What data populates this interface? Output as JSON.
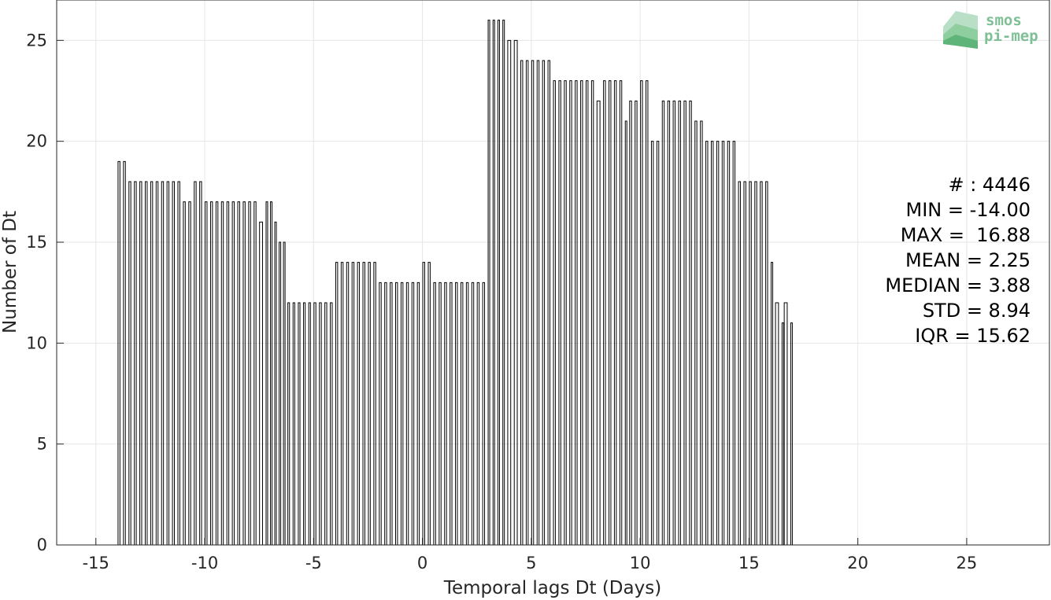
{
  "chart_data": {
    "type": "bar",
    "xlabel": "Temporal lags Dt (Days)",
    "ylabel": "Number of Dt",
    "xlim": [
      -16.8,
      28.8
    ],
    "ylim": [
      0,
      27
    ],
    "xticks": [
      -15,
      -10,
      -5,
      0,
      5,
      10,
      15,
      20,
      25
    ],
    "yticks": [
      0,
      5,
      10,
      15,
      20,
      25
    ],
    "grid": true,
    "bar_color": "#000000",
    "bins": [
      {
        "x0": -14.0,
        "x1": -13.5,
        "value": 19
      },
      {
        "x0": -13.5,
        "x1": -12.5,
        "value": 18
      },
      {
        "x0": -12.5,
        "x1": -11.5,
        "value": 18
      },
      {
        "x0": -11.5,
        "x1": -11.0,
        "value": 18
      },
      {
        "x0": -11.0,
        "x1": -10.5,
        "value": 17
      },
      {
        "x0": -10.5,
        "x1": -10.0,
        "value": 18
      },
      {
        "x0": -10.0,
        "x1": -8.5,
        "value": 17
      },
      {
        "x0": -8.5,
        "x1": -7.5,
        "value": 17
      },
      {
        "x0": -7.5,
        "x1": -7.2,
        "value": 16
      },
      {
        "x0": -7.2,
        "x1": -6.8,
        "value": 17
      },
      {
        "x0": -6.8,
        "x1": -6.6,
        "value": 16
      },
      {
        "x0": -6.6,
        "x1": -6.2,
        "value": 15
      },
      {
        "x0": -6.2,
        "x1": -5.0,
        "value": 12
      },
      {
        "x0": -5.0,
        "x1": -4.0,
        "value": 12
      },
      {
        "x0": -4.0,
        "x1": -3.0,
        "value": 14
      },
      {
        "x0": -3.0,
        "x1": -2.0,
        "value": 14
      },
      {
        "x0": -2.0,
        "x1": -1.0,
        "value": 13
      },
      {
        "x0": -1.0,
        "x1": 0.0,
        "value": 13
      },
      {
        "x0": 0.0,
        "x1": 0.5,
        "value": 14
      },
      {
        "x0": 0.5,
        "x1": 3.0,
        "value": 13
      },
      {
        "x0": 3.0,
        "x1": 3.9,
        "value": 26
      },
      {
        "x0": 3.9,
        "x1": 4.5,
        "value": 25
      },
      {
        "x0": 4.5,
        "x1": 6.0,
        "value": 24
      },
      {
        "x0": 6.0,
        "x1": 8.0,
        "value": 23
      },
      {
        "x0": 8.0,
        "x1": 8.3,
        "value": 22
      },
      {
        "x0": 8.3,
        "x1": 9.3,
        "value": 23
      },
      {
        "x0": 9.3,
        "x1": 9.5,
        "value": 21
      },
      {
        "x0": 9.5,
        "x1": 10.0,
        "value": 22
      },
      {
        "x0": 10.0,
        "x1": 10.5,
        "value": 23
      },
      {
        "x0": 10.5,
        "x1": 11.0,
        "value": 20
      },
      {
        "x0": 11.0,
        "x1": 12.5,
        "value": 22
      },
      {
        "x0": 12.5,
        "x1": 13.0,
        "value": 21
      },
      {
        "x0": 13.0,
        "x1": 14.5,
        "value": 20
      },
      {
        "x0": 14.5,
        "x1": 15.0,
        "value": 18
      },
      {
        "x0": 15.0,
        "x1": 16.0,
        "value": 18
      },
      {
        "x0": 16.0,
        "x1": 16.2,
        "value": 14
      },
      {
        "x0": 16.2,
        "x1": 16.5,
        "value": 12
      },
      {
        "x0": 16.5,
        "x1": 16.6,
        "value": 11
      },
      {
        "x0": 16.6,
        "x1": 16.9,
        "value": 12
      },
      {
        "x0": 16.9,
        "x1": 17.0,
        "value": 11
      }
    ],
    "annotations": [
      "# : 4446",
      "MIN = -14.00",
      "MAX =  16.88",
      "MEAN = 2.25",
      "MEDIAN = 3.88",
      "STD = 8.94",
      "IQR = 15.62"
    ]
  },
  "logo": {
    "line1": "smos",
    "line2": "pi-mep",
    "color": "#7fbf96"
  }
}
